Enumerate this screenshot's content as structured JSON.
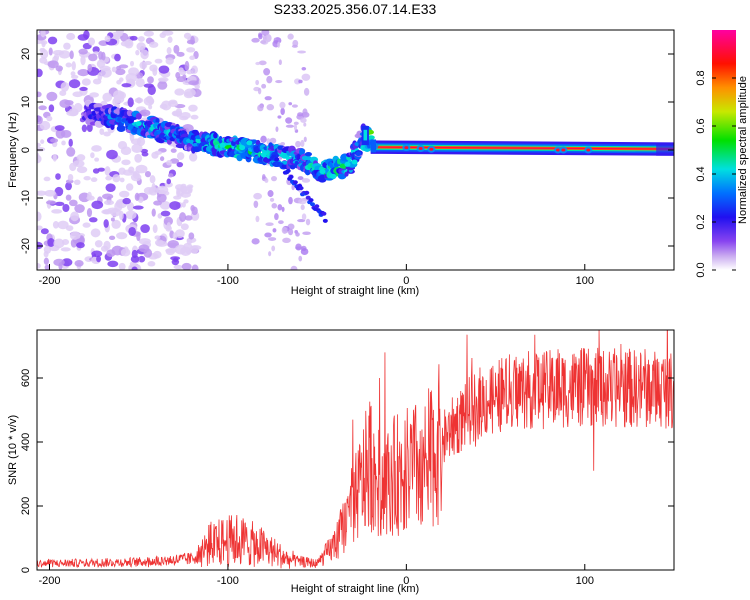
{
  "title": "S233.2025.356.07.14.E33",
  "chart_data": [
    {
      "type": "heatmap",
      "name": "spectrogram",
      "xlabel": "Height of straight line (km)",
      "ylabel": "Frequency (Hz)",
      "xlim": [
        -207,
        150
      ],
      "ylim": [
        -25,
        25
      ],
      "xticks": [
        -200,
        -100,
        0,
        100
      ],
      "yticks": [
        -20,
        -10,
        0,
        10,
        20
      ],
      "colorbar": {
        "label": "Normalized spectral amplitude",
        "range": [
          0.0,
          1.0
        ],
        "ticks": [
          0.0,
          0.2,
          0.4,
          0.6,
          0.8
        ],
        "colormap": [
          "#ffffff",
          "#e6d8f5",
          "#7a3fe0",
          "#2a10f0",
          "#0080ff",
          "#00e0e0",
          "#00e000",
          "#e0e000",
          "#ff8000",
          "#ff0000",
          "#ff00a0"
        ]
      },
      "features": {
        "noise_region_km": [
          -207,
          -120
        ],
        "ridge": [
          {
            "x": -175,
            "f": 7.5,
            "a": 0.25
          },
          {
            "x": -150,
            "f": 5.5,
            "a": 0.4
          },
          {
            "x": -125,
            "f": 2.5,
            "a": 0.35
          },
          {
            "x": -100,
            "f": 0.5,
            "a": 0.45
          },
          {
            "x": -80,
            "f": -0.5,
            "a": 0.45
          },
          {
            "x": -60,
            "f": -2.0,
            "a": 0.35
          },
          {
            "x": -45,
            "f": -4.5,
            "a": 0.45
          },
          {
            "x": -32,
            "f": -3.0,
            "a": 0.45
          },
          {
            "x": -24,
            "f": 3.0,
            "a": 0.3
          },
          {
            "x": -18,
            "f": 0.8,
            "a": 0.95
          },
          {
            "x": 0,
            "f": 0.5,
            "a": 0.9
          },
          {
            "x": 20,
            "f": 0.0,
            "a": 0.95
          },
          {
            "x": 150,
            "f": 0.0,
            "a": 0.95
          }
        ]
      }
    },
    {
      "type": "line",
      "name": "snr",
      "xlabel": "Height of straight line (km)",
      "ylabel": "SNR (10 * v/v)",
      "xlim": [
        -207,
        150
      ],
      "ylim": [
        0,
        750
      ],
      "xticks": [
        -200,
        -100,
        0,
        100
      ],
      "yticks": [
        0,
        200,
        400,
        600
      ],
      "color": "#ee3333",
      "envelope": [
        {
          "x": -207,
          "y": 20
        },
        {
          "x": -150,
          "y": 25
        },
        {
          "x": -120,
          "y": 35
        },
        {
          "x": -110,
          "y": 80
        },
        {
          "x": -95,
          "y": 95
        },
        {
          "x": -80,
          "y": 70
        },
        {
          "x": -65,
          "y": 30
        },
        {
          "x": -50,
          "y": 20
        },
        {
          "x": -40,
          "y": 80
        },
        {
          "x": -30,
          "y": 200
        },
        {
          "x": -20,
          "y": 340
        },
        {
          "x": -15,
          "y": 260
        },
        {
          "x": -5,
          "y": 300
        },
        {
          "x": 10,
          "y": 330
        },
        {
          "x": 25,
          "y": 440
        },
        {
          "x": 40,
          "y": 520
        },
        {
          "x": 60,
          "y": 560
        },
        {
          "x": 100,
          "y": 570
        },
        {
          "x": 150,
          "y": 565
        }
      ],
      "peaks": [
        {
          "x": -30,
          "y": 470
        },
        {
          "x": -15,
          "y": 600
        },
        {
          "x": -12,
          "y": 680
        },
        {
          "x": -9,
          "y": 120
        },
        {
          "x": 72,
          "y": 735
        },
        {
          "x": 85,
          "y": 690
        },
        {
          "x": 108,
          "y": 750
        },
        {
          "x": 105,
          "y": 310
        }
      ]
    }
  ]
}
